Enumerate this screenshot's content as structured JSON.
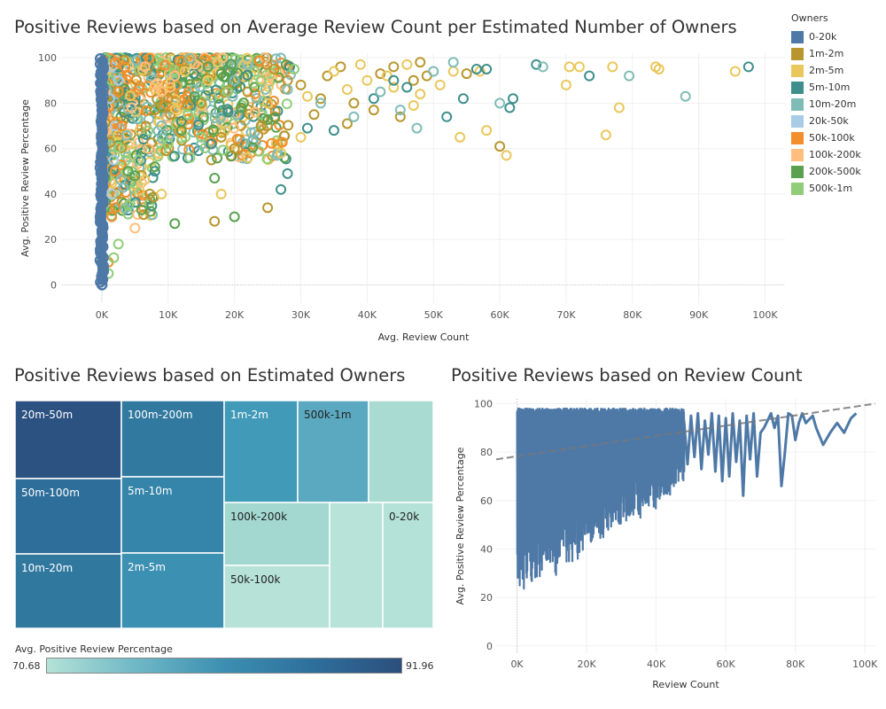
{
  "colors": {
    "0-20k": "#4e79a7",
    "1m-2m": "#b9962d",
    "2m-5m": "#eac75b",
    "5m-10m": "#3e8f8b",
    "10m-20m": "#7fbcb6",
    "20k-50k": "#a8cbe6",
    "50k-100k": "#f28e2b",
    "100k-200k": "#ffbe7d",
    "200k-500k": "#59a14f",
    "500k-1m": "#8fcd79"
  },
  "scatter": {
    "title": "Positive Reviews based on Average Review Count per Estimated Number of Owners",
    "xlabel": "Avg. Review Count",
    "ylabel": "Avg. Positive Review Percentage",
    "legend_title": "Owners",
    "legend": [
      "0-20k",
      "1m-2m",
      "2m-5m",
      "5m-10m",
      "10m-20m",
      "20k-50k",
      "50k-100k",
      "100k-200k",
      "200k-500k",
      "500k-1m"
    ]
  },
  "treemap": {
    "title": "Positive Reviews based on Estimated Owners",
    "colorbar_title": "Avg. Positive Review Percentage",
    "colorbar_min": "70.68",
    "colorbar_max": "91.96"
  },
  "line": {
    "title": "Positive Reviews based on Review Count",
    "xlabel": "Review Count",
    "ylabel": "Avg. Positive Review Percentage"
  },
  "chart_data": [
    {
      "type": "scatter",
      "title": "Positive Reviews based on Average Review Count per Estimated Number of Owners",
      "xlabel": "Avg. Review Count",
      "ylabel": "Avg. Positive Review Percentage",
      "xlim": [
        -6000,
        103000
      ],
      "ylim": [
        -8,
        102
      ],
      "xticks": [
        0,
        10000,
        20000,
        30000,
        40000,
        50000,
        60000,
        70000,
        80000,
        90000,
        100000
      ],
      "xtick_labels": [
        "0K",
        "10K",
        "20K",
        "30K",
        "40K",
        "50K",
        "60K",
        "70K",
        "80K",
        "90K",
        "100K"
      ],
      "yticks": [
        0,
        20,
        40,
        60,
        80,
        100
      ],
      "grid": true,
      "legend_position": "right",
      "series": [
        {
          "name": "1m-2m",
          "points": [
            [
              25000,
              34
            ],
            [
              41000,
              77
            ],
            [
              47000,
              90
            ],
            [
              37000,
              71
            ],
            [
              60000,
              61
            ],
            [
              33000,
              82
            ],
            [
              48000,
              98
            ],
            [
              44000,
              96
            ],
            [
              49000,
              92
            ],
            [
              20000,
              60
            ],
            [
              15000,
              80
            ],
            [
              32000,
              75
            ],
            [
              55000,
              93
            ],
            [
              22000,
              85
            ],
            [
              28000,
              90
            ],
            [
              36000,
              96
            ],
            [
              42000,
              93
            ],
            [
              18000,
              65
            ],
            [
              24000,
              70
            ],
            [
              30000,
              88
            ],
            [
              10000,
              82
            ],
            [
              8000,
              77
            ],
            [
              26000,
              95
            ],
            [
              34000,
              92
            ],
            [
              45000,
              74
            ],
            [
              38000,
              80
            ],
            [
              17000,
              28
            ]
          ]
        },
        {
          "name": "2m-5m",
          "points": [
            [
              95500,
              94
            ],
            [
              84000,
              95
            ],
            [
              76000,
              66
            ],
            [
              78000,
              78
            ],
            [
              70000,
              88
            ],
            [
              72000,
              96
            ],
            [
              77000,
              96
            ],
            [
              83500,
              96
            ],
            [
              70500,
              96
            ],
            [
              61000,
              57
            ],
            [
              58000,
              68
            ],
            [
              54000,
              65
            ],
            [
              53000,
              94
            ],
            [
              47000,
              79
            ],
            [
              48000,
              84
            ],
            [
              44000,
              87
            ],
            [
              51000,
              88
            ],
            [
              57000,
              94
            ],
            [
              40000,
              90
            ],
            [
              35000,
              94
            ],
            [
              30000,
              65
            ],
            [
              27000,
              58
            ],
            [
              22000,
              56
            ],
            [
              18000,
              40
            ],
            [
              12000,
              70
            ],
            [
              9000,
              40
            ],
            [
              16000,
              90
            ],
            [
              25000,
              80
            ],
            [
              31000,
              83
            ],
            [
              39000,
              97
            ],
            [
              46000,
              97
            ],
            [
              43000,
              92
            ],
            [
              37000,
              86
            ]
          ]
        },
        {
          "name": "5m-10m",
          "points": [
            [
              97500,
              96
            ],
            [
              65500,
              97
            ],
            [
              73500,
              92
            ],
            [
              62000,
              82
            ],
            [
              61500,
              78
            ],
            [
              58000,
              95
            ],
            [
              56500,
              95
            ],
            [
              52000,
              74
            ],
            [
              54500,
              82
            ],
            [
              46000,
              87
            ],
            [
              44000,
              90
            ],
            [
              41000,
              82
            ],
            [
              35000,
              68
            ],
            [
              31000,
              69
            ],
            [
              28000,
              49
            ],
            [
              27000,
              42
            ],
            [
              19000,
              76
            ],
            [
              12000,
              72
            ],
            [
              8000,
              50
            ],
            [
              6000,
              58
            ]
          ]
        },
        {
          "name": "10m-20m",
          "points": [
            [
              88000,
              83
            ],
            [
              79500,
              92
            ],
            [
              66500,
              96
            ],
            [
              60000,
              80
            ],
            [
              53000,
              98
            ],
            [
              50000,
              94
            ],
            [
              47500,
              69
            ],
            [
              45000,
              77
            ],
            [
              42000,
              85
            ],
            [
              38000,
              74
            ],
            [
              33000,
              80
            ],
            [
              28000,
              86
            ],
            [
              20000,
              90
            ],
            [
              14000,
              86
            ],
            [
              9000,
              70
            ]
          ]
        },
        {
          "name": "20k-50k",
          "points": [
            [
              1500,
              40
            ],
            [
              1800,
              55
            ],
            [
              2000,
              70
            ],
            [
              1200,
              82
            ],
            [
              2500,
              90
            ],
            [
              1500,
              96
            ]
          ]
        },
        {
          "name": "50k-100k",
          "points": [
            [
              1000,
              10
            ],
            [
              1500,
              30
            ],
            [
              2000,
              50
            ],
            [
              3000,
              70
            ],
            [
              2500,
              85
            ],
            [
              4000,
              92
            ],
            [
              3500,
              96
            ],
            [
              2000,
              98
            ]
          ]
        },
        {
          "name": "100k-200k",
          "points": [
            [
              5000,
              25
            ],
            [
              6000,
              45
            ],
            [
              7000,
              60
            ],
            [
              4500,
              78
            ],
            [
              8000,
              88
            ],
            [
              6500,
              96
            ],
            [
              9000,
              85
            ],
            [
              11000,
              92
            ]
          ]
        },
        {
          "name": "200k-500k",
          "points": [
            [
              11000,
              27
            ],
            [
              17000,
              47
            ],
            [
              12000,
              68
            ],
            [
              20000,
              30
            ],
            [
              21000,
              78
            ],
            [
              23000,
              87
            ],
            [
              16000,
              96
            ],
            [
              6000,
              33
            ],
            [
              5000,
              48
            ],
            [
              8000,
              52
            ],
            [
              14000,
              83
            ],
            [
              18000,
              93
            ]
          ]
        },
        {
          "name": "500k-1m",
          "points": [
            [
              1000,
              5
            ],
            [
              1800,
              12
            ],
            [
              2500,
              18
            ],
            [
              4000,
              35
            ],
            [
              5500,
              55
            ],
            [
              10000,
              62
            ],
            [
              13000,
              75
            ],
            [
              19000,
              85
            ],
            [
              15000,
              65
            ],
            [
              24000,
              90
            ],
            [
              29000,
              95
            ]
          ]
        }
      ]
    },
    {
      "type": "treemap",
      "title": "Positive Reviews based on Estimated Owners",
      "value_label": "Avg. Positive Review Percentage",
      "range": [
        70.68,
        91.96
      ],
      "labels": [
        "20m-50m",
        "50m-100m",
        "10m-20m",
        "100m-200m",
        "5m-10m",
        "2m-5m",
        "1m-2m",
        "500k-1m",
        "100k-200k",
        "50k-100k",
        "0-20k"
      ]
    },
    {
      "type": "line",
      "title": "Positive Reviews based on Review Count",
      "xlabel": "Review Count",
      "ylabel": "Avg. Positive Review Percentage",
      "xlim": [
        -6000,
        103000
      ],
      "ylim": [
        -3,
        102
      ],
      "xticks": [
        0,
        20000,
        40000,
        60000,
        80000,
        100000
      ],
      "xtick_labels": [
        "0K",
        "20K",
        "40K",
        "60K",
        "80K",
        "100K"
      ],
      "yticks": [
        0,
        20,
        40,
        60,
        80,
        100
      ],
      "trend_line": {
        "x": [
          -6000,
          103000
        ],
        "y": [
          77,
          100
        ]
      },
      "series": [
        {
          "name": "",
          "x": [
            48000,
            49000,
            50000,
            51000,
            52000,
            53000,
            54000,
            55000,
            56000,
            57000,
            58000,
            59000,
            60000,
            61000,
            62000,
            63000,
            64000,
            65000,
            66000,
            67000,
            68000,
            69000,
            70000,
            71000,
            72000,
            73000,
            74000,
            75000,
            76000,
            77000,
            78000,
            79000,
            80000,
            81000,
            82000,
            83000,
            85000,
            86000,
            88000,
            90000,
            92000,
            94000,
            96000,
            97500
          ],
          "y": [
            93,
            75,
            95,
            78,
            96,
            73,
            93,
            79,
            96,
            72,
            95,
            68,
            94,
            70,
            96,
            76,
            93,
            62,
            95,
            77,
            96,
            70,
            88,
            90,
            93,
            96,
            90,
            95,
            66,
            80,
            96,
            95,
            85,
            92,
            96,
            92,
            95,
            90,
            83,
            88,
            92,
            88,
            94,
            96
          ]
        }
      ]
    }
  ]
}
